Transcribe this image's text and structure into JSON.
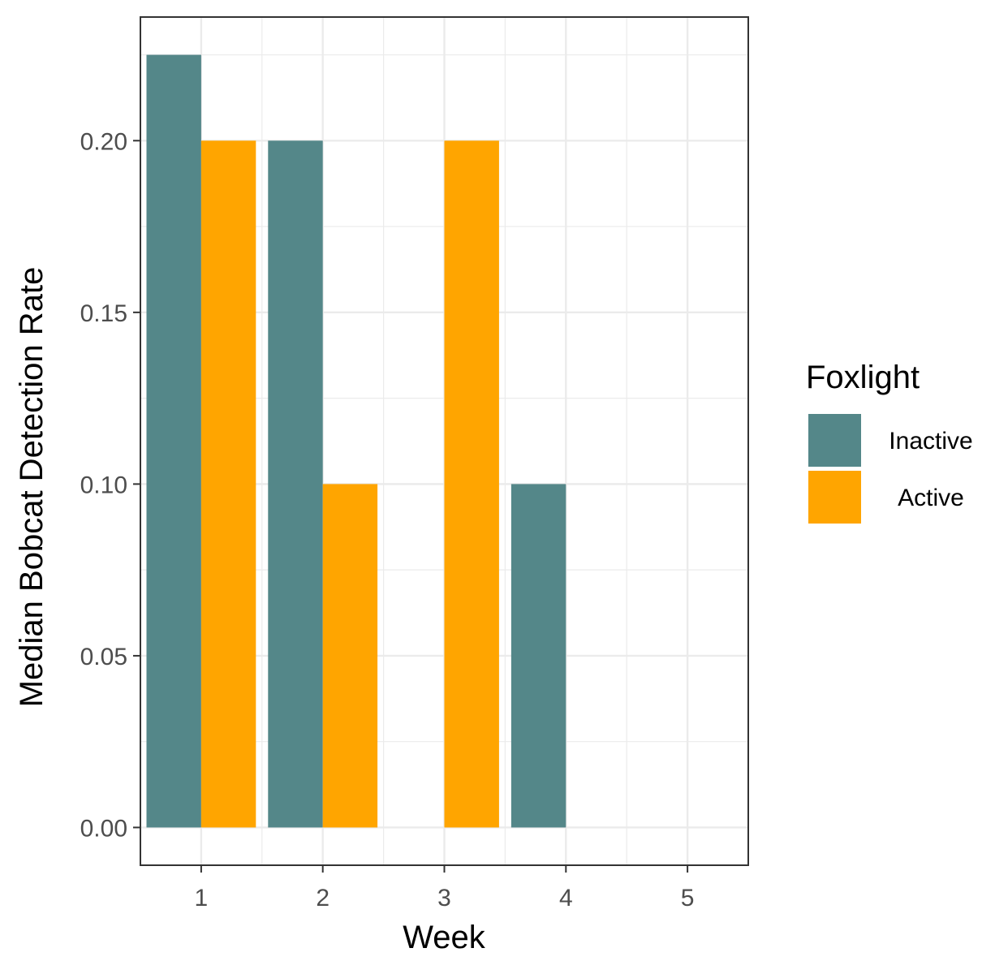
{
  "chart_data": {
    "type": "bar",
    "xlabel": "Week",
    "ylabel": "Median Bobcat Detection Rate",
    "x": [
      1,
      2,
      3,
      4,
      5
    ],
    "x_ticks": [
      "1",
      "2",
      "3",
      "4",
      "5"
    ],
    "y_ticks": [
      "0.00",
      "0.05",
      "0.10",
      "0.15",
      "0.20"
    ],
    "y_tick_values": [
      0,
      0.05,
      0.1,
      0.15,
      0.2
    ],
    "xlim": [
      0.5,
      5.5
    ],
    "ylim": [
      -0.011,
      0.236
    ],
    "grid": true,
    "legend": {
      "title": "Foxlight",
      "placement": "right"
    },
    "series": [
      {
        "name": "Inactive",
        "color": "#548789",
        "values": [
          0.225,
          0.2,
          null,
          0.1,
          null
        ]
      },
      {
        "name": "Active",
        "color": "#FFA500",
        "values": [
          0.2,
          0.1,
          0.2,
          null,
          null
        ]
      }
    ]
  }
}
